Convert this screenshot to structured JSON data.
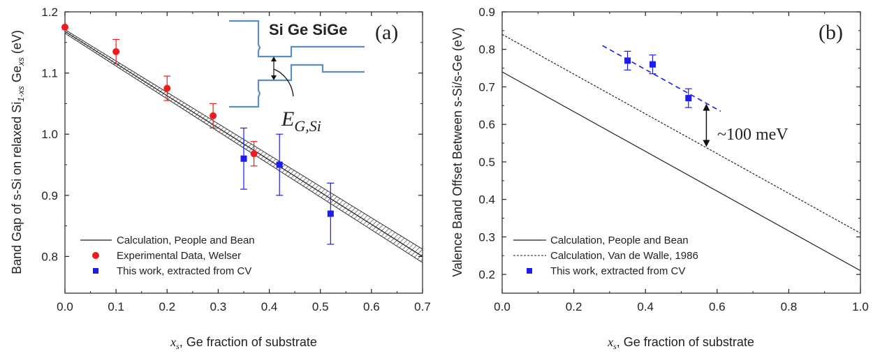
{
  "chart_data": [
    {
      "type": "scatter",
      "panel_label": "(a)",
      "xlabel": "x_s, Ge fraction of substrate",
      "xlabel_var": "x",
      "xlabel_sub": "s",
      "xlabel_rest": ", Ge fraction of substrate",
      "ylabel_prefix": "Band Gap of s-Si on relaxed Si",
      "ylabel_sub1": "1-xs",
      "ylabel_mid": " Ge",
      "ylabel_sub2": "xs",
      "ylabel_suffix": " (eV)",
      "xlim": [
        0.0,
        0.7
      ],
      "ylim": [
        0.74,
        1.2
      ],
      "xticks": [
        "0.0",
        "0.1",
        "0.2",
        "0.3",
        "0.4",
        "0.5",
        "0.6",
        "0.7"
      ],
      "yticks": [
        "0.8",
        "0.9",
        "1.0",
        "1.1",
        "1.2"
      ],
      "band": {
        "x0": 0.0,
        "x1": 0.7,
        "upper": [
          1.171,
          0.812
        ],
        "lower": [
          1.165,
          0.79
        ]
      },
      "series": [
        {
          "name": "Calculation, People and Bean",
          "style": "line",
          "color": "#222222",
          "x": [
            0.0,
            0.7
          ],
          "y": [
            1.168,
            0.8
          ]
        },
        {
          "name": "Experimental Data, Welser",
          "style": "circle",
          "color": "#ee1c1c",
          "x": [
            0.0,
            0.1,
            0.2,
            0.29,
            0.37
          ],
          "y": [
            1.175,
            1.135,
            1.075,
            1.03,
            0.968
          ],
          "err": [
            0,
            0.02,
            0.02,
            0.02,
            0.02
          ]
        },
        {
          "name": "This work, extracted from CV",
          "style": "square",
          "color": "#1c1cee",
          "x": [
            0.35,
            0.42,
            0.52
          ],
          "y": [
            0.96,
            0.95,
            0.87
          ],
          "err": [
            0.05,
            0.05,
            0.05
          ]
        }
      ],
      "inset": {
        "title": "Si Ge SiGe",
        "label_main": "E",
        "label_sub": "G,Si"
      },
      "legend_position": "bottom-left"
    },
    {
      "type": "scatter",
      "panel_label": "(b)",
      "xlabel": "x_s, Ge fraction of substrate",
      "xlabel_var": "x",
      "xlabel_sub": "s",
      "xlabel_rest": ", Ge fraction of substrate",
      "ylabel": "Valence Band Offset Between s-Si/s-Ge (eV)",
      "xlim": [
        0.0,
        1.0
      ],
      "ylim": [
        0.15,
        0.9
      ],
      "xticks": [
        "0.0",
        "0.2",
        "0.4",
        "0.6",
        "0.8",
        "1.0"
      ],
      "yticks": [
        "0.2",
        "0.3",
        "0.4",
        "0.5",
        "0.6",
        "0.7",
        "0.8",
        "0.9"
      ],
      "series": [
        {
          "name": "Calculation, People and Bean",
          "style": "line",
          "color": "#222222",
          "x": [
            0.0,
            1.0
          ],
          "y": [
            0.74,
            0.21
          ]
        },
        {
          "name": "Calculation, Van de Walle, 1986",
          "style": "dotted",
          "color": "#222222",
          "x": [
            0.0,
            1.0
          ],
          "y": [
            0.84,
            0.31
          ]
        },
        {
          "name": "This work, extracted from CV",
          "style": "square",
          "color": "#1c1cee",
          "x": [
            0.35,
            0.42,
            0.52
          ],
          "y": [
            0.77,
            0.76,
            0.67
          ],
          "err": [
            0.025,
            0.025,
            0.025
          ]
        },
        {
          "name": "",
          "style": "dashed",
          "color": "#1c1cee",
          "x": [
            0.28,
            0.61
          ],
          "y": [
            0.81,
            0.635
          ]
        }
      ],
      "annotation": {
        "text": "~100 meV",
        "x": 0.57,
        "y_top": 0.655,
        "y_bottom": 0.54
      },
      "legend_position": "bottom-left"
    }
  ]
}
